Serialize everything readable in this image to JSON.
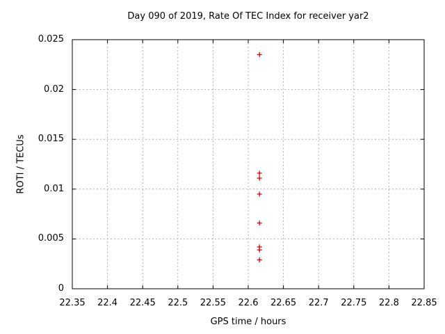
{
  "chart_data": {
    "type": "scatter",
    "title": "Day 090 of 2019, Rate Of TEC Index for receiver yar2",
    "xlabel": "GPS time / hours",
    "ylabel": "ROTI / TECUs",
    "xlim": [
      22.35,
      22.85
    ],
    "ylim": [
      0,
      0.025
    ],
    "x_tick_values": [
      22.35,
      22.4,
      22.45,
      22.5,
      22.55,
      22.6,
      22.65,
      22.7,
      22.75,
      22.8,
      22.85
    ],
    "x_tick_labels": [
      "22.35",
      "22.4",
      "22.45",
      "22.5",
      "22.55",
      "22.6",
      "22.65",
      "22.7",
      "22.75",
      "22.8",
      "22.85"
    ],
    "y_tick_values": [
      0,
      0.005,
      0.01,
      0.015,
      0.02,
      0.025
    ],
    "y_tick_labels": [
      "0",
      "0.005",
      "0.01",
      "0.015",
      "0.02",
      "0.025"
    ],
    "grid": true,
    "grid_style": "dashed",
    "legend_position": "none",
    "series": [
      {
        "name": "ROTI",
        "marker": "plus",
        "points": [
          [
            22.616,
            0.0235
          ],
          [
            22.616,
            0.0116
          ],
          [
            22.616,
            0.0111
          ],
          [
            22.616,
            0.0095
          ],
          [
            22.616,
            0.0066
          ],
          [
            22.616,
            0.0042
          ],
          [
            22.616,
            0.0039
          ],
          [
            22.616,
            0.0029
          ]
        ]
      }
    ],
    "colors": {
      "marker": "#dd0000",
      "grid": "#b0b0b0",
      "border": "#000000",
      "text": "#000000",
      "background": "#ffffff"
    }
  }
}
